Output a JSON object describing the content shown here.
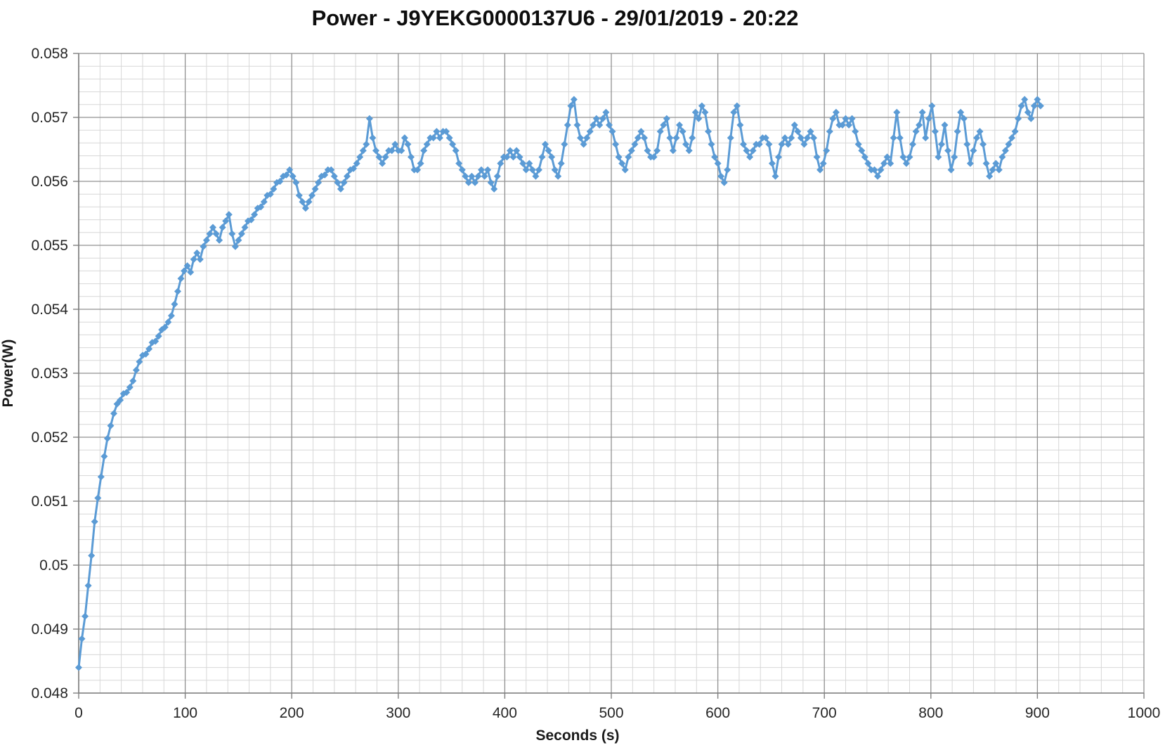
{
  "page": {
    "background": "#ffffff"
  },
  "chart_data": {
    "type": "line",
    "title": "Power - J9YEKG0000137U6 - 29/01/2019 - 20:22",
    "xlabel": "Seconds (s)",
    "ylabel": "Power(W)",
    "xlim": [
      0,
      1000
    ],
    "ylim": [
      0.048,
      0.058
    ],
    "x_major_step": 100,
    "x_minor_step": 20,
    "y_major_step": 0.001,
    "y_minor_step": 0.0002,
    "x_tick_labels": [
      "0",
      "100",
      "200",
      "300",
      "400",
      "500",
      "600",
      "700",
      "800",
      "900",
      "1000"
    ],
    "y_tick_labels": [
      "0.048",
      "0.049",
      "0.05",
      "0.051",
      "0.052",
      "0.053",
      "0.054",
      "0.055",
      "0.056",
      "0.057",
      "0.058"
    ],
    "grid": "major+minor",
    "legend_position": "none",
    "marker": "diamond",
    "series_color": "#5B9BD5",
    "major_grid_color": "#909090",
    "minor_grid_color": "#d7d7d7",
    "axis_color": "#7f7f7f",
    "text_color": "#262626",
    "series": [
      {
        "name": "Power",
        "t_start": 0,
        "t_step": 3,
        "values": [
          0.0484,
          0.04885,
          0.0492,
          0.04968,
          0.05015,
          0.05068,
          0.05105,
          0.05138,
          0.0517,
          0.05198,
          0.05218,
          0.05237,
          0.05252,
          0.05258,
          0.05268,
          0.0527,
          0.05278,
          0.05288,
          0.05305,
          0.05318,
          0.05328,
          0.0533,
          0.05338,
          0.05348,
          0.0535,
          0.05358,
          0.05368,
          0.05372,
          0.0538,
          0.0539,
          0.05408,
          0.05428,
          0.05448,
          0.0546,
          0.05468,
          0.05458,
          0.05478,
          0.05488,
          0.05478,
          0.05498,
          0.05508,
          0.05518,
          0.05528,
          0.05518,
          0.05508,
          0.05528,
          0.05538,
          0.05548,
          0.05518,
          0.05498,
          0.05508,
          0.05518,
          0.05528,
          0.05538,
          0.0554,
          0.05548,
          0.05558,
          0.0556,
          0.05568,
          0.05578,
          0.0558,
          0.05588,
          0.05598,
          0.056,
          0.05608,
          0.0561,
          0.05618,
          0.05608,
          0.05598,
          0.05578,
          0.05568,
          0.05558,
          0.05568,
          0.05578,
          0.05588,
          0.05598,
          0.05608,
          0.0561,
          0.05618,
          0.05618,
          0.05608,
          0.05598,
          0.05588,
          0.05598,
          0.05608,
          0.05618,
          0.0562,
          0.05628,
          0.05638,
          0.05648,
          0.05658,
          0.05698,
          0.05668,
          0.05648,
          0.05638,
          0.05628,
          0.05638,
          0.05648,
          0.05648,
          0.05658,
          0.05648,
          0.05648,
          0.05668,
          0.05658,
          0.05638,
          0.05618,
          0.05618,
          0.05628,
          0.05648,
          0.05658,
          0.05668,
          0.05668,
          0.05678,
          0.05668,
          0.05678,
          0.05678,
          0.05668,
          0.05658,
          0.05648,
          0.05628,
          0.05618,
          0.05608,
          0.05598,
          0.05608,
          0.05598,
          0.05608,
          0.05618,
          0.05608,
          0.05618,
          0.05598,
          0.05588,
          0.05608,
          0.05628,
          0.05638,
          0.05638,
          0.05648,
          0.05638,
          0.05648,
          0.05638,
          0.05628,
          0.05618,
          0.05628,
          0.05618,
          0.05608,
          0.05618,
          0.05638,
          0.05658,
          0.05648,
          0.05638,
          0.05618,
          0.05608,
          0.05628,
          0.05658,
          0.05688,
          0.05718,
          0.05728,
          0.05688,
          0.05668,
          0.05658,
          0.05668,
          0.05678,
          0.05688,
          0.05698,
          0.05688,
          0.05698,
          0.05708,
          0.05688,
          0.05678,
          0.05658,
          0.05638,
          0.05628,
          0.05618,
          0.05638,
          0.05648,
          0.05658,
          0.05668,
          0.05678,
          0.05668,
          0.05648,
          0.05638,
          0.05638,
          0.05648,
          0.05678,
          0.05688,
          0.05698,
          0.05668,
          0.05648,
          0.05668,
          0.05688,
          0.05678,
          0.05658,
          0.05648,
          0.05668,
          0.05708,
          0.05698,
          0.05718,
          0.05708,
          0.05678,
          0.05658,
          0.05638,
          0.05628,
          0.05608,
          0.05598,
          0.05618,
          0.05668,
          0.05708,
          0.05718,
          0.05688,
          0.05658,
          0.05648,
          0.05638,
          0.05648,
          0.05658,
          0.05658,
          0.05668,
          0.05668,
          0.05658,
          0.05628,
          0.05608,
          0.05638,
          0.05658,
          0.05668,
          0.05658,
          0.05668,
          0.05688,
          0.05678,
          0.05668,
          0.05658,
          0.05668,
          0.05678,
          0.05668,
          0.05638,
          0.05618,
          0.05628,
          0.05648,
          0.05678,
          0.05698,
          0.05708,
          0.05688,
          0.05688,
          0.05698,
          0.05688,
          0.05698,
          0.05678,
          0.05658,
          0.05648,
          0.05638,
          0.05628,
          0.05618,
          0.05618,
          0.05608,
          0.05618,
          0.05628,
          0.05638,
          0.05628,
          0.05668,
          0.05708,
          0.05668,
          0.05638,
          0.05628,
          0.05638,
          0.05658,
          0.05678,
          0.05688,
          0.05708,
          0.05668,
          0.05698,
          0.05718,
          0.05678,
          0.05638,
          0.05658,
          0.05688,
          0.05648,
          0.05618,
          0.05638,
          0.05678,
          0.05708,
          0.05698,
          0.05658,
          0.05628,
          0.05648,
          0.05668,
          0.05678,
          0.05658,
          0.05628,
          0.05608,
          0.05618,
          0.05628,
          0.05618,
          0.05638,
          0.05648,
          0.05658,
          0.05668,
          0.05678,
          0.05698,
          0.05718,
          0.05728,
          0.05708,
          0.05698,
          0.05718,
          0.05728,
          0.05718
        ]
      }
    ]
  }
}
